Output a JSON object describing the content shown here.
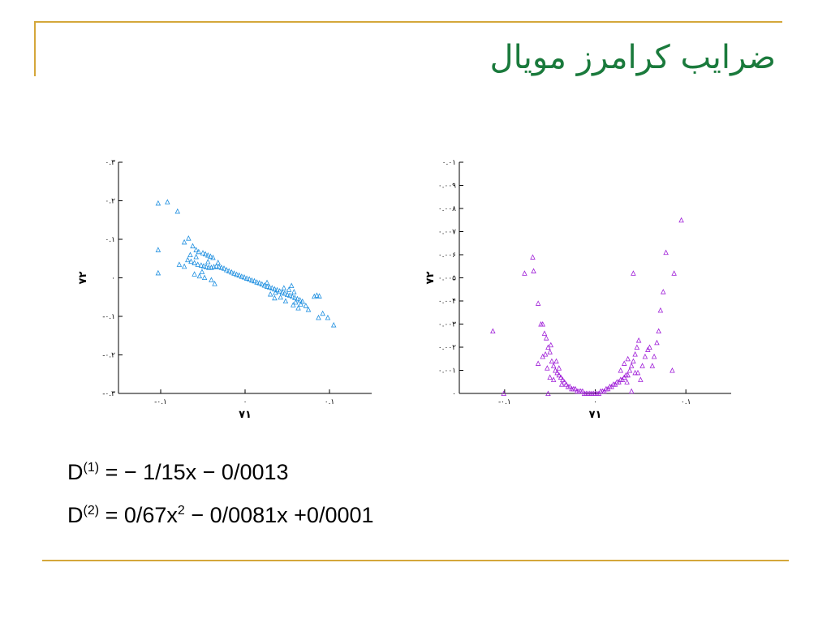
{
  "title": "ضرایب کرامرز مویال",
  "colors": {
    "frame": "#d4a73a",
    "title": "#1a7a3c",
    "series1": "#1e8fe0",
    "series2": "#a020d8"
  },
  "equations": [
    {
      "lhs": "D",
      "sup": "(1)",
      "rhs": "= − 1/15x − 0/0013"
    },
    {
      "lhs": "D",
      "sup": "(2)",
      "rhs_a": "= 0/67x",
      "rhs_sup": "2",
      "rhs_b": " − 0/0081x +0/0001"
    }
  ],
  "chart_data": [
    {
      "type": "scatter",
      "xlabel": "۷۱",
      "ylabel": "۷۲",
      "xlim": [
        -0.15,
        0.15
      ],
      "ylim": [
        -0.3,
        0.3
      ],
      "grid": false,
      "marker": "triangle",
      "color": "#1e8fe0",
      "x_ticks": [
        {
          "value": -0.1,
          "label": "-۰.۱"
        },
        {
          "value": 0,
          "label": "۰"
        },
        {
          "value": 0.1,
          "label": "۰.۱"
        }
      ],
      "y_ticks": [
        {
          "value": 0.3,
          "label": "۰.۳"
        },
        {
          "value": 0.2,
          "label": "۰.۲"
        },
        {
          "value": 0.1,
          "label": "۰.۱"
        },
        {
          "value": 0,
          "label": "۰"
        },
        {
          "value": -0.1,
          "label": "-۰.۱"
        },
        {
          "value": -0.2,
          "label": "-۰.۲"
        },
        {
          "value": -0.3,
          "label": "-۰.۳"
        }
      ],
      "points": [
        [
          -0.103,
          0.194
        ],
        [
          -0.092,
          0.197
        ],
        [
          -0.08,
          0.173
        ],
        [
          -0.103,
          0.073
        ],
        [
          -0.103,
          0.013
        ],
        [
          -0.067,
          0.103
        ],
        [
          -0.072,
          0.093
        ],
        [
          -0.062,
          0.083
        ],
        [
          -0.058,
          0.073
        ],
        [
          -0.055,
          0.068
        ],
        [
          -0.05,
          0.065
        ],
        [
          -0.047,
          0.062
        ],
        [
          -0.044,
          0.059
        ],
        [
          -0.041,
          0.056
        ],
        [
          -0.038,
          0.053
        ],
        [
          -0.068,
          0.047
        ],
        [
          -0.064,
          0.043
        ],
        [
          -0.06,
          0.039
        ],
        [
          -0.056,
          0.035
        ],
        [
          -0.052,
          0.033
        ],
        [
          -0.049,
          0.031
        ],
        [
          -0.046,
          0.029
        ],
        [
          -0.043,
          0.027
        ],
        [
          -0.04,
          0.027
        ],
        [
          -0.037,
          0.029
        ],
        [
          -0.034,
          0.031
        ],
        [
          -0.031,
          0.029
        ],
        [
          -0.028,
          0.027
        ],
        [
          -0.025,
          0.025
        ],
        [
          -0.022,
          0.021
        ],
        [
          -0.019,
          0.018
        ],
        [
          -0.016,
          0.015
        ],
        [
          -0.013,
          0.012
        ],
        [
          -0.01,
          0.009
        ],
        [
          -0.007,
          0.007
        ],
        [
          -0.004,
          0.004
        ],
        [
          -0.001,
          0.002
        ],
        [
          0.002,
          -0.001
        ],
        [
          0.005,
          -0.003
        ],
        [
          0.008,
          -0.006
        ],
        [
          0.011,
          -0.008
        ],
        [
          0.014,
          -0.011
        ],
        [
          0.017,
          -0.013
        ],
        [
          0.02,
          -0.016
        ],
        [
          0.023,
          -0.019
        ],
        [
          0.026,
          -0.022
        ],
        [
          0.029,
          -0.024
        ],
        [
          0.032,
          -0.026
        ],
        [
          0.035,
          -0.029
        ],
        [
          0.038,
          -0.031
        ],
        [
          0.041,
          -0.034
        ],
        [
          0.044,
          -0.037
        ],
        [
          0.047,
          -0.04
        ],
        [
          0.05,
          -0.043
        ],
        [
          0.053,
          -0.045
        ],
        [
          0.056,
          -0.048
        ],
        [
          0.059,
          -0.051
        ],
        [
          0.062,
          -0.054
        ],
        [
          0.065,
          -0.057
        ],
        [
          0.068,
          -0.061
        ],
        [
          -0.06,
          0.01
        ],
        [
          -0.054,
          0.005
        ],
        [
          -0.048,
          0.001
        ],
        [
          -0.04,
          -0.005
        ],
        [
          -0.036,
          -0.015
        ],
        [
          -0.078,
          0.035
        ],
        [
          -0.072,
          0.03
        ],
        [
          -0.051,
          0.016
        ],
        [
          0.036,
          -0.038
        ],
        [
          0.046,
          -0.026
        ],
        [
          0.052,
          -0.03
        ],
        [
          0.055,
          -0.02
        ],
        [
          0.058,
          -0.036
        ],
        [
          0.066,
          -0.068
        ],
        [
          0.072,
          -0.072
        ],
        [
          0.075,
          -0.082
        ],
        [
          0.048,
          -0.06
        ],
        [
          0.042,
          -0.05
        ],
        [
          0.035,
          -0.052
        ],
        [
          0.03,
          -0.042
        ],
        [
          0.063,
          -0.078
        ],
        [
          0.085,
          -0.045
        ],
        [
          0.088,
          -0.047
        ],
        [
          0.092,
          -0.092
        ],
        [
          0.087,
          -0.103
        ],
        [
          0.098,
          -0.103
        ],
        [
          0.105,
          -0.122
        ],
        [
          0.082,
          -0.048
        ],
        [
          0.06,
          -0.063
        ],
        [
          0.057,
          -0.07
        ],
        [
          -0.032,
          0.04
        ],
        [
          -0.058,
          0.055
        ],
        [
          -0.065,
          0.06
        ],
        [
          -0.044,
          0.042
        ],
        [
          0.026,
          -0.012
        ]
      ]
    },
    {
      "type": "scatter",
      "xlabel": "۷۱",
      "ylabel": "۷۲",
      "xlim": [
        -0.15,
        0.15
      ],
      "ylim": [
        0,
        0.01
      ],
      "grid": false,
      "marker": "triangle",
      "color": "#a020d8",
      "x_ticks": [
        {
          "value": -0.1,
          "label": "-۰.۱"
        },
        {
          "value": 0,
          "label": "۰"
        },
        {
          "value": 0.1,
          "label": "۰.۱"
        }
      ],
      "y_ticks": [
        {
          "value": 0.01,
          "label": "۰.۰۱"
        },
        {
          "value": 0.009,
          "label": "۰.۰۰۹"
        },
        {
          "value": 0.008,
          "label": "۰.۰۰۸"
        },
        {
          "value": 0.007,
          "label": "۰.۰۰۷"
        },
        {
          "value": 0.006,
          "label": "۰.۰۰۶"
        },
        {
          "value": 0.005,
          "label": "۰.۰۰۵"
        },
        {
          "value": 0.004,
          "label": "۰.۰۰۴"
        },
        {
          "value": 0.003,
          "label": "۰.۰۰۳"
        },
        {
          "value": 0.002,
          "label": "۰.۰۰۲"
        },
        {
          "value": 0.001,
          "label": "۰.۰۰۱"
        },
        {
          "value": 0,
          "label": "۰"
        }
      ],
      "points": [
        [
          -0.113,
          0.0027
        ],
        [
          -0.078,
          0.0052
        ],
        [
          -0.069,
          0.0059
        ],
        [
          -0.068,
          0.0053
        ],
        [
          -0.063,
          0.0039
        ],
        [
          -0.06,
          0.003
        ],
        [
          -0.058,
          0.003
        ],
        [
          -0.056,
          0.0026
        ],
        [
          -0.054,
          0.0024
        ],
        [
          -0.052,
          0.002
        ],
        [
          -0.05,
          0.0018
        ],
        [
          -0.048,
          0.0014
        ],
        [
          -0.046,
          0.0012
        ],
        [
          -0.044,
          0.001
        ],
        [
          -0.042,
          0.0009
        ],
        [
          -0.04,
          0.0008
        ],
        [
          -0.038,
          0.0007
        ],
        [
          -0.036,
          0.0006
        ],
        [
          -0.034,
          0.0005
        ],
        [
          -0.032,
          0.0004
        ],
        [
          -0.03,
          0.0003
        ],
        [
          -0.028,
          0.0003
        ],
        [
          -0.026,
          0.0002
        ],
        [
          -0.024,
          0.0002
        ],
        [
          -0.022,
          0.0002
        ],
        [
          -0.02,
          0.0001
        ],
        [
          -0.018,
          0.0001
        ],
        [
          -0.016,
          0.0001
        ],
        [
          -0.014,
          0.0001
        ],
        [
          -0.012,
          0.0
        ],
        [
          -0.01,
          0.0
        ],
        [
          -0.008,
          0.0
        ],
        [
          -0.006,
          0.0
        ],
        [
          -0.004,
          0.0
        ],
        [
          -0.002,
          0.0
        ],
        [
          0.0,
          0.0
        ],
        [
          0.002,
          0.0
        ],
        [
          0.004,
          0.0
        ],
        [
          0.006,
          0.0001
        ],
        [
          0.008,
          0.0001
        ],
        [
          0.01,
          0.0001
        ],
        [
          0.012,
          0.0002
        ],
        [
          0.014,
          0.0002
        ],
        [
          0.016,
          0.0003
        ],
        [
          0.018,
          0.0003
        ],
        [
          0.02,
          0.0004
        ],
        [
          0.022,
          0.0004
        ],
        [
          0.024,
          0.0005
        ],
        [
          0.026,
          0.0005
        ],
        [
          0.028,
          0.0006
        ],
        [
          0.03,
          0.0006
        ],
        [
          0.032,
          0.0007
        ],
        [
          0.034,
          0.0008
        ],
        [
          0.036,
          0.0008
        ],
        [
          0.038,
          0.001
        ],
        [
          0.04,
          0.0012
        ],
        [
          0.042,
          0.0014
        ],
        [
          0.044,
          0.0017
        ],
        [
          0.046,
          0.002
        ],
        [
          0.048,
          0.0023
        ],
        [
          -0.063,
          0.0013
        ],
        [
          -0.058,
          0.0016
        ],
        [
          -0.053,
          0.0011
        ],
        [
          -0.05,
          0.0007
        ],
        [
          -0.046,
          0.0006
        ],
        [
          -0.043,
          0.0014
        ],
        [
          -0.04,
          0.0011
        ],
        [
          -0.037,
          0.0004
        ],
        [
          -0.049,
          0.0021
        ],
        [
          -0.055,
          0.0017
        ],
        [
          0.028,
          0.001
        ],
        [
          0.032,
          0.0013
        ],
        [
          0.035,
          0.0005
        ],
        [
          0.04,
          0.0001
        ],
        [
          0.044,
          0.0009
        ],
        [
          0.047,
          0.0009
        ],
        [
          0.05,
          0.0006
        ],
        [
          0.052,
          0.0012
        ],
        [
          0.055,
          0.0016
        ],
        [
          0.058,
          0.0019
        ],
        [
          0.042,
          0.0052
        ],
        [
          0.065,
          0.0016
        ],
        [
          0.068,
          0.0022
        ],
        [
          0.07,
          0.0027
        ],
        [
          0.072,
          0.0036
        ],
        [
          0.075,
          0.0044
        ],
        [
          0.078,
          0.0061
        ],
        [
          0.085,
          0.001
        ],
        [
          0.087,
          0.0052
        ],
        [
          0.095,
          0.0075
        ],
        [
          0.063,
          0.0012
        ],
        [
          0.06,
          0.002
        ],
        [
          0.036,
          0.0015
        ],
        [
          -0.101,
          0.0
        ],
        [
          -0.052,
          0.0
        ]
      ]
    }
  ]
}
